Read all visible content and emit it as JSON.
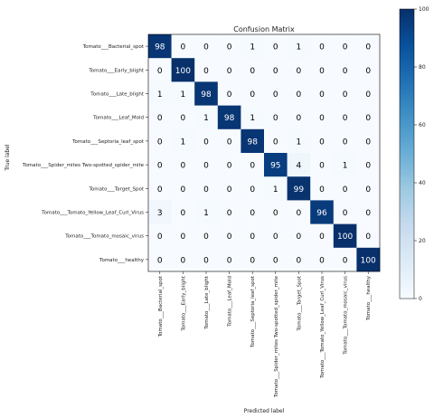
{
  "chart_data": {
    "type": "heatmap",
    "title": "Confusion Matrix",
    "xlabel": "Predicted label",
    "ylabel": "True label",
    "labels": [
      "Tomato___Bacterial_spot",
      "Tomato___Early_blight",
      "Tomato___Late_blight",
      "Tomato___Leaf_Mold",
      "Tomato___Septoria_leaf_spot",
      "Tomato___Spider_mites Two-spotted_spider_mite",
      "Tomato___Target_Spot",
      "Tomato___Tomato_Yellow_Leaf_Curl_Virus",
      "Tomato___Tomato_mosaic_virus",
      "Tomato___healthy"
    ],
    "matrix": [
      [
        98,
        0,
        0,
        0,
        1,
        0,
        1,
        0,
        0,
        0
      ],
      [
        0,
        100,
        0,
        0,
        0,
        0,
        0,
        0,
        0,
        0
      ],
      [
        1,
        1,
        98,
        0,
        0,
        0,
        0,
        0,
        0,
        0
      ],
      [
        0,
        0,
        1,
        98,
        1,
        0,
        0,
        0,
        0,
        0
      ],
      [
        0,
        1,
        0,
        0,
        98,
        0,
        1,
        0,
        0,
        0
      ],
      [
        0,
        0,
        0,
        0,
        0,
        95,
        4,
        0,
        1,
        0
      ],
      [
        0,
        0,
        0,
        0,
        0,
        1,
        99,
        0,
        0,
        0
      ],
      [
        3,
        0,
        1,
        0,
        0,
        0,
        0,
        96,
        0,
        0
      ],
      [
        0,
        0,
        0,
        0,
        0,
        0,
        0,
        0,
        100,
        0
      ],
      [
        0,
        0,
        0,
        0,
        0,
        0,
        0,
        0,
        0,
        100
      ]
    ],
    "colorbar": {
      "min": 0,
      "max": 100,
      "ticks": [
        0,
        20,
        40,
        60,
        80,
        100
      ]
    },
    "colormap": {
      "low": "#f7fbff",
      "high": "#08306b"
    }
  }
}
